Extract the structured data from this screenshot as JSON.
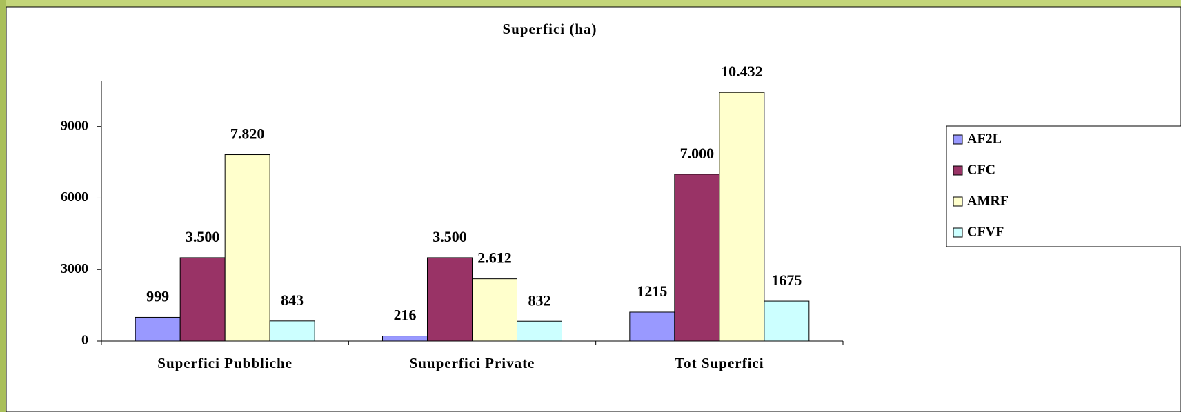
{
  "chart_data": {
    "type": "bar",
    "title": "Superfici (ha)",
    "categories": [
      "Superfici Pubbliche",
      "Suuperfici Private",
      "Tot Superfici"
    ],
    "series": [
      {
        "name": "AF2L",
        "color": "#9999ff",
        "values": [
          999,
          216,
          1215
        ],
        "value_labels": [
          "999",
          "216",
          "1215"
        ]
      },
      {
        "name": "CFC",
        "color": "#993366",
        "values": [
          3500,
          3500,
          7000
        ],
        "value_labels": [
          "3.500",
          "3.500",
          "7.000"
        ]
      },
      {
        "name": "AMRF",
        "color": "#ffffcc",
        "values": [
          7820,
          2612,
          10432
        ],
        "value_labels": [
          "7.820",
          "2.612",
          "10.432"
        ]
      },
      {
        "name": "CFVF",
        "color": "#ccffff",
        "values": [
          843,
          832,
          1675
        ],
        "value_labels": [
          "843",
          "832",
          "1675"
        ]
      }
    ],
    "ylim": [
      0,
      10900
    ],
    "yticks": [
      0,
      3000,
      6000,
      9000
    ],
    "grid": false,
    "legend": "right"
  }
}
